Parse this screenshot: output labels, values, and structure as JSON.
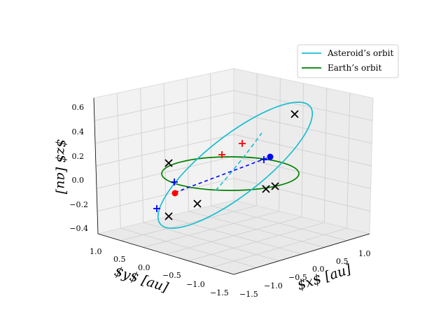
{
  "chart_data": {
    "type": "line3d",
    "title": "",
    "xlabel": "$x$ [au]",
    "ylabel": "$y$ [au]",
    "zlabel": "$z$ [au]",
    "xlim": [
      -1.5,
      1.5
    ],
    "ylim": [
      -1.5,
      1.0
    ],
    "zlim": [
      -0.4,
      0.6
    ],
    "xticks": [
      "−1.5",
      "−1.0",
      "−0.5",
      "0.0",
      "0.5",
      "1.0"
    ],
    "yticks": [
      "−1.5",
      "−1.0",
      "−0.5",
      "0.0",
      "0.5",
      "1.0"
    ],
    "zticks": [
      "−0.4",
      "−0.2",
      "0.0",
      "0.2",
      "0.4",
      "0.6"
    ],
    "grid": true,
    "legend_position": "top-right",
    "series": [
      {
        "name": "Asteroid’s orbit",
        "color": "#17becf",
        "kind": "ellipse",
        "center": [
          0.25,
          0.0,
          0.1
        ],
        "axis_u": [
          1.3,
          0.0,
          0.4
        ],
        "axis_v": [
          0.0,
          1.1,
          0.0
        ]
      },
      {
        "name": "Earth’s orbit",
        "color": "#008000",
        "kind": "circle",
        "center": [
          0.0,
          0.0,
          0.0
        ],
        "radius": 1.0
      }
    ],
    "markers": {
      "black_x": [
        [
          -0.3,
          1.0,
          -0.2
        ],
        [
          0.2,
          1.0,
          -0.1
        ],
        [
          -1.0,
          0.8,
          0.2
        ],
        [
          1.2,
          -1.0,
          -0.1
        ],
        [
          1.3,
          -0.9,
          -0.1
        ],
        [
          -0.1,
          -1.6,
          0.7
        ]
      ],
      "red_plus": [
        [
          -0.9,
          -0.4,
          0.2
        ],
        [
          -1.0,
          -0.9,
          0.3
        ]
      ],
      "blue_plus": [
        [
          0.0,
          1.3,
          -0.2
        ],
        [
          -0.2,
          0.9,
          0.0
        ],
        [
          0.2,
          -1.3,
          0.2
        ]
      ],
      "red_dot": [
        0.1,
        0.8,
        -0.1
      ],
      "blue_dot": [
        0.2,
        -1.4,
        0.2
      ]
    },
    "dashed_line": {
      "color": "#0000ff",
      "from": [
        0.1,
        0.8,
        -0.1
      ],
      "to": [
        0.2,
        -1.4,
        0.2
      ]
    },
    "dashed_inner_arc": {
      "color": "#17becf"
    }
  }
}
